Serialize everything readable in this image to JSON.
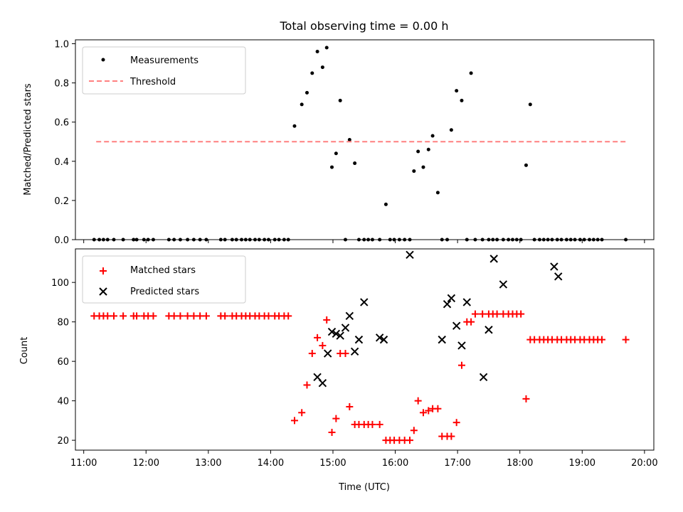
{
  "chart_data": [
    {
      "type": "scatter",
      "title": "Total observing time = 0.00 h",
      "xlabel": "",
      "ylabel": "Matched/Predicted stars",
      "xlim": [
        "10:52",
        "20:09"
      ],
      "ylim": [
        0,
        1.02
      ],
      "yticks": [
        0.0,
        0.2,
        0.4,
        0.6,
        0.8,
        1.0
      ],
      "ytick_labels": [
        "0.0",
        "0.2",
        "0.4",
        "0.6",
        "0.8",
        "1.0"
      ],
      "x_tick_labels_shown": false,
      "legend": {
        "placement": "upper-left",
        "entries": [
          "Measurements",
          "Threshold"
        ]
      },
      "series": [
        {
          "name": "Measurements",
          "kind": "scatter",
          "color": "#000000",
          "x": [
            "11:10",
            "11:15",
            "11:19",
            "11:23",
            "11:29",
            "11:38",
            "11:48",
            "11:51",
            "11:58",
            "12:02",
            "12:07",
            "12:22",
            "12:27",
            "12:33",
            "12:40",
            "12:46",
            "12:52",
            "12:58",
            "13:12",
            "13:16",
            "13:23",
            "13:27",
            "13:32",
            "13:36",
            "13:40",
            "13:45",
            "13:49",
            "13:54",
            "13:58",
            "14:04",
            "14:08",
            "14:13",
            "14:17",
            "14:23",
            "14:30",
            "14:35",
            "14:40",
            "14:45",
            "14:50",
            "14:54",
            "14:59",
            "15:03",
            "15:07",
            "15:12",
            "15:16",
            "15:21",
            "15:25",
            "15:30",
            "15:34",
            "15:38",
            "15:45",
            "15:51",
            "15:55",
            "15:59",
            "16:04",
            "16:09",
            "16:14",
            "16:18",
            "16:22",
            "16:27",
            "16:32",
            "16:36",
            "16:41",
            "16:45",
            "16:50",
            "16:54",
            "16:59",
            "17:04",
            "17:09",
            "17:13",
            "17:17",
            "17:24",
            "17:30",
            "17:34",
            "17:38",
            "17:44",
            "17:49",
            "17:53",
            "17:57",
            "18:01",
            "18:06",
            "18:10",
            "18:14",
            "18:19",
            "18:23",
            "18:27",
            "18:31",
            "18:36",
            "18:40",
            "18:45",
            "18:49",
            "18:53",
            "18:58",
            "19:02",
            "19:07",
            "19:11",
            "19:15",
            "19:19",
            "19:42"
          ],
          "y": [
            0,
            0,
            0,
            0,
            0,
            0,
            0,
            0,
            0,
            0,
            0,
            0,
            0,
            0,
            0,
            0,
            0,
            0,
            0,
            0,
            0,
            0,
            0,
            0,
            0,
            0,
            0,
            0,
            0,
            0,
            0,
            0,
            0,
            0.58,
            0.69,
            0.75,
            0.85,
            0.96,
            0.88,
            0.98,
            0.37,
            0.44,
            0.71,
            0,
            0.51,
            0.39,
            0,
            0,
            0,
            0,
            0,
            0.18,
            0,
            0,
            0,
            0,
            0,
            0.35,
            0.45,
            0.37,
            0.46,
            0.53,
            0.24,
            0,
            0,
            0.56,
            0.76,
            0.71,
            0,
            0.85,
            0,
            0,
            0,
            0,
            0,
            0,
            0,
            0,
            0,
            0,
            0.38,
            0.69,
            0,
            0,
            0,
            0,
            0,
            0,
            0,
            0,
            0,
            0,
            0,
            0,
            0,
            0,
            0,
            0,
            0
          ]
        },
        {
          "name": "Threshold",
          "kind": "line",
          "style": "dashed",
          "color": "#ff8080",
          "x": [
            "11:12",
            "19:42"
          ],
          "y": [
            0.5,
            0.5
          ]
        }
      ]
    },
    {
      "type": "scatter",
      "title": "",
      "xlabel": "Time (UTC)",
      "ylabel": "Count",
      "xlim": [
        "10:52",
        "20:09"
      ],
      "ylim": [
        15,
        117
      ],
      "yticks": [
        20,
        40,
        60,
        80,
        100
      ],
      "ytick_labels": [
        "20",
        "40",
        "60",
        "80",
        "100"
      ],
      "xtick_labels": [
        "11:00",
        "12:00",
        "13:00",
        "14:00",
        "15:00",
        "16:00",
        "17:00",
        "18:00",
        "19:00",
        "20:00"
      ],
      "legend": {
        "placement": "upper-left",
        "entries": [
          "Matched stars",
          "Predicted stars"
        ]
      },
      "series": [
        {
          "name": "Matched stars",
          "kind": "scatter",
          "marker": "+",
          "color": "#ff0000",
          "x": [
            "11:10",
            "11:15",
            "11:19",
            "11:23",
            "11:29",
            "11:38",
            "11:48",
            "11:51",
            "11:58",
            "12:02",
            "12:07",
            "12:22",
            "12:27",
            "12:33",
            "12:40",
            "12:46",
            "12:52",
            "12:58",
            "13:12",
            "13:16",
            "13:23",
            "13:27",
            "13:32",
            "13:36",
            "13:40",
            "13:45",
            "13:49",
            "13:54",
            "13:58",
            "14:04",
            "14:08",
            "14:13",
            "14:17",
            "14:23",
            "14:30",
            "14:35",
            "14:40",
            "14:45",
            "14:50",
            "14:54",
            "14:59",
            "15:03",
            "15:07",
            "15:12",
            "15:16",
            "15:21",
            "15:25",
            "15:30",
            "15:34",
            "15:38",
            "15:45",
            "15:51",
            "15:55",
            "15:59",
            "16:04",
            "16:09",
            "16:14",
            "16:18",
            "16:22",
            "16:27",
            "16:32",
            "16:36",
            "16:41",
            "16:45",
            "16:50",
            "16:54",
            "16:59",
            "17:04",
            "17:09",
            "17:13",
            "17:17",
            "17:24",
            "17:30",
            "17:34",
            "17:38",
            "17:44",
            "17:49",
            "17:53",
            "17:57",
            "18:01",
            "18:06",
            "18:10",
            "18:14",
            "18:19",
            "18:23",
            "18:27",
            "18:31",
            "18:36",
            "18:40",
            "18:45",
            "18:49",
            "18:53",
            "18:58",
            "19:02",
            "19:07",
            "19:11",
            "19:15",
            "19:19",
            "19:42"
          ],
          "y": [
            83,
            83,
            83,
            83,
            83,
            83,
            83,
            83,
            83,
            83,
            83,
            83,
            83,
            83,
            83,
            83,
            83,
            83,
            83,
            83,
            83,
            83,
            83,
            83,
            83,
            83,
            83,
            83,
            83,
            83,
            83,
            83,
            83,
            30,
            34,
            48,
            64,
            72,
            68,
            81,
            24,
            31,
            64,
            64,
            37,
            28,
            28,
            28,
            28,
            28,
            28,
            20,
            20,
            20,
            20,
            20,
            20,
            25,
            40,
            34,
            35,
            36,
            36,
            22,
            22,
            22,
            29,
            58,
            80,
            80,
            84,
            84,
            84,
            84,
            84,
            84,
            84,
            84,
            84,
            84,
            41,
            71,
            71,
            71,
            71,
            71,
            71,
            71,
            71,
            71,
            71,
            71,
            71,
            71,
            71,
            71,
            71,
            71,
            71
          ]
        },
        {
          "name": "Predicted stars",
          "kind": "scatter",
          "marker": "x",
          "color": "#000000",
          "x": [
            "14:45",
            "14:50",
            "14:55",
            "14:59",
            "15:03",
            "15:07",
            "15:12",
            "15:16",
            "15:21",
            "15:25",
            "15:30",
            "15:45",
            "15:49",
            "16:14",
            "16:45",
            "16:50",
            "16:54",
            "16:59",
            "17:04",
            "17:09",
            "17:25",
            "17:30",
            "17:35",
            "17:44",
            "18:33",
            "18:37"
          ],
          "y": [
            52,
            49,
            64,
            75,
            74,
            73,
            77,
            83,
            65,
            71,
            90,
            72,
            71,
            114,
            71,
            89,
            92,
            78,
            68,
            90,
            52,
            76,
            112,
            99,
            108,
            103
          ]
        }
      ]
    }
  ]
}
